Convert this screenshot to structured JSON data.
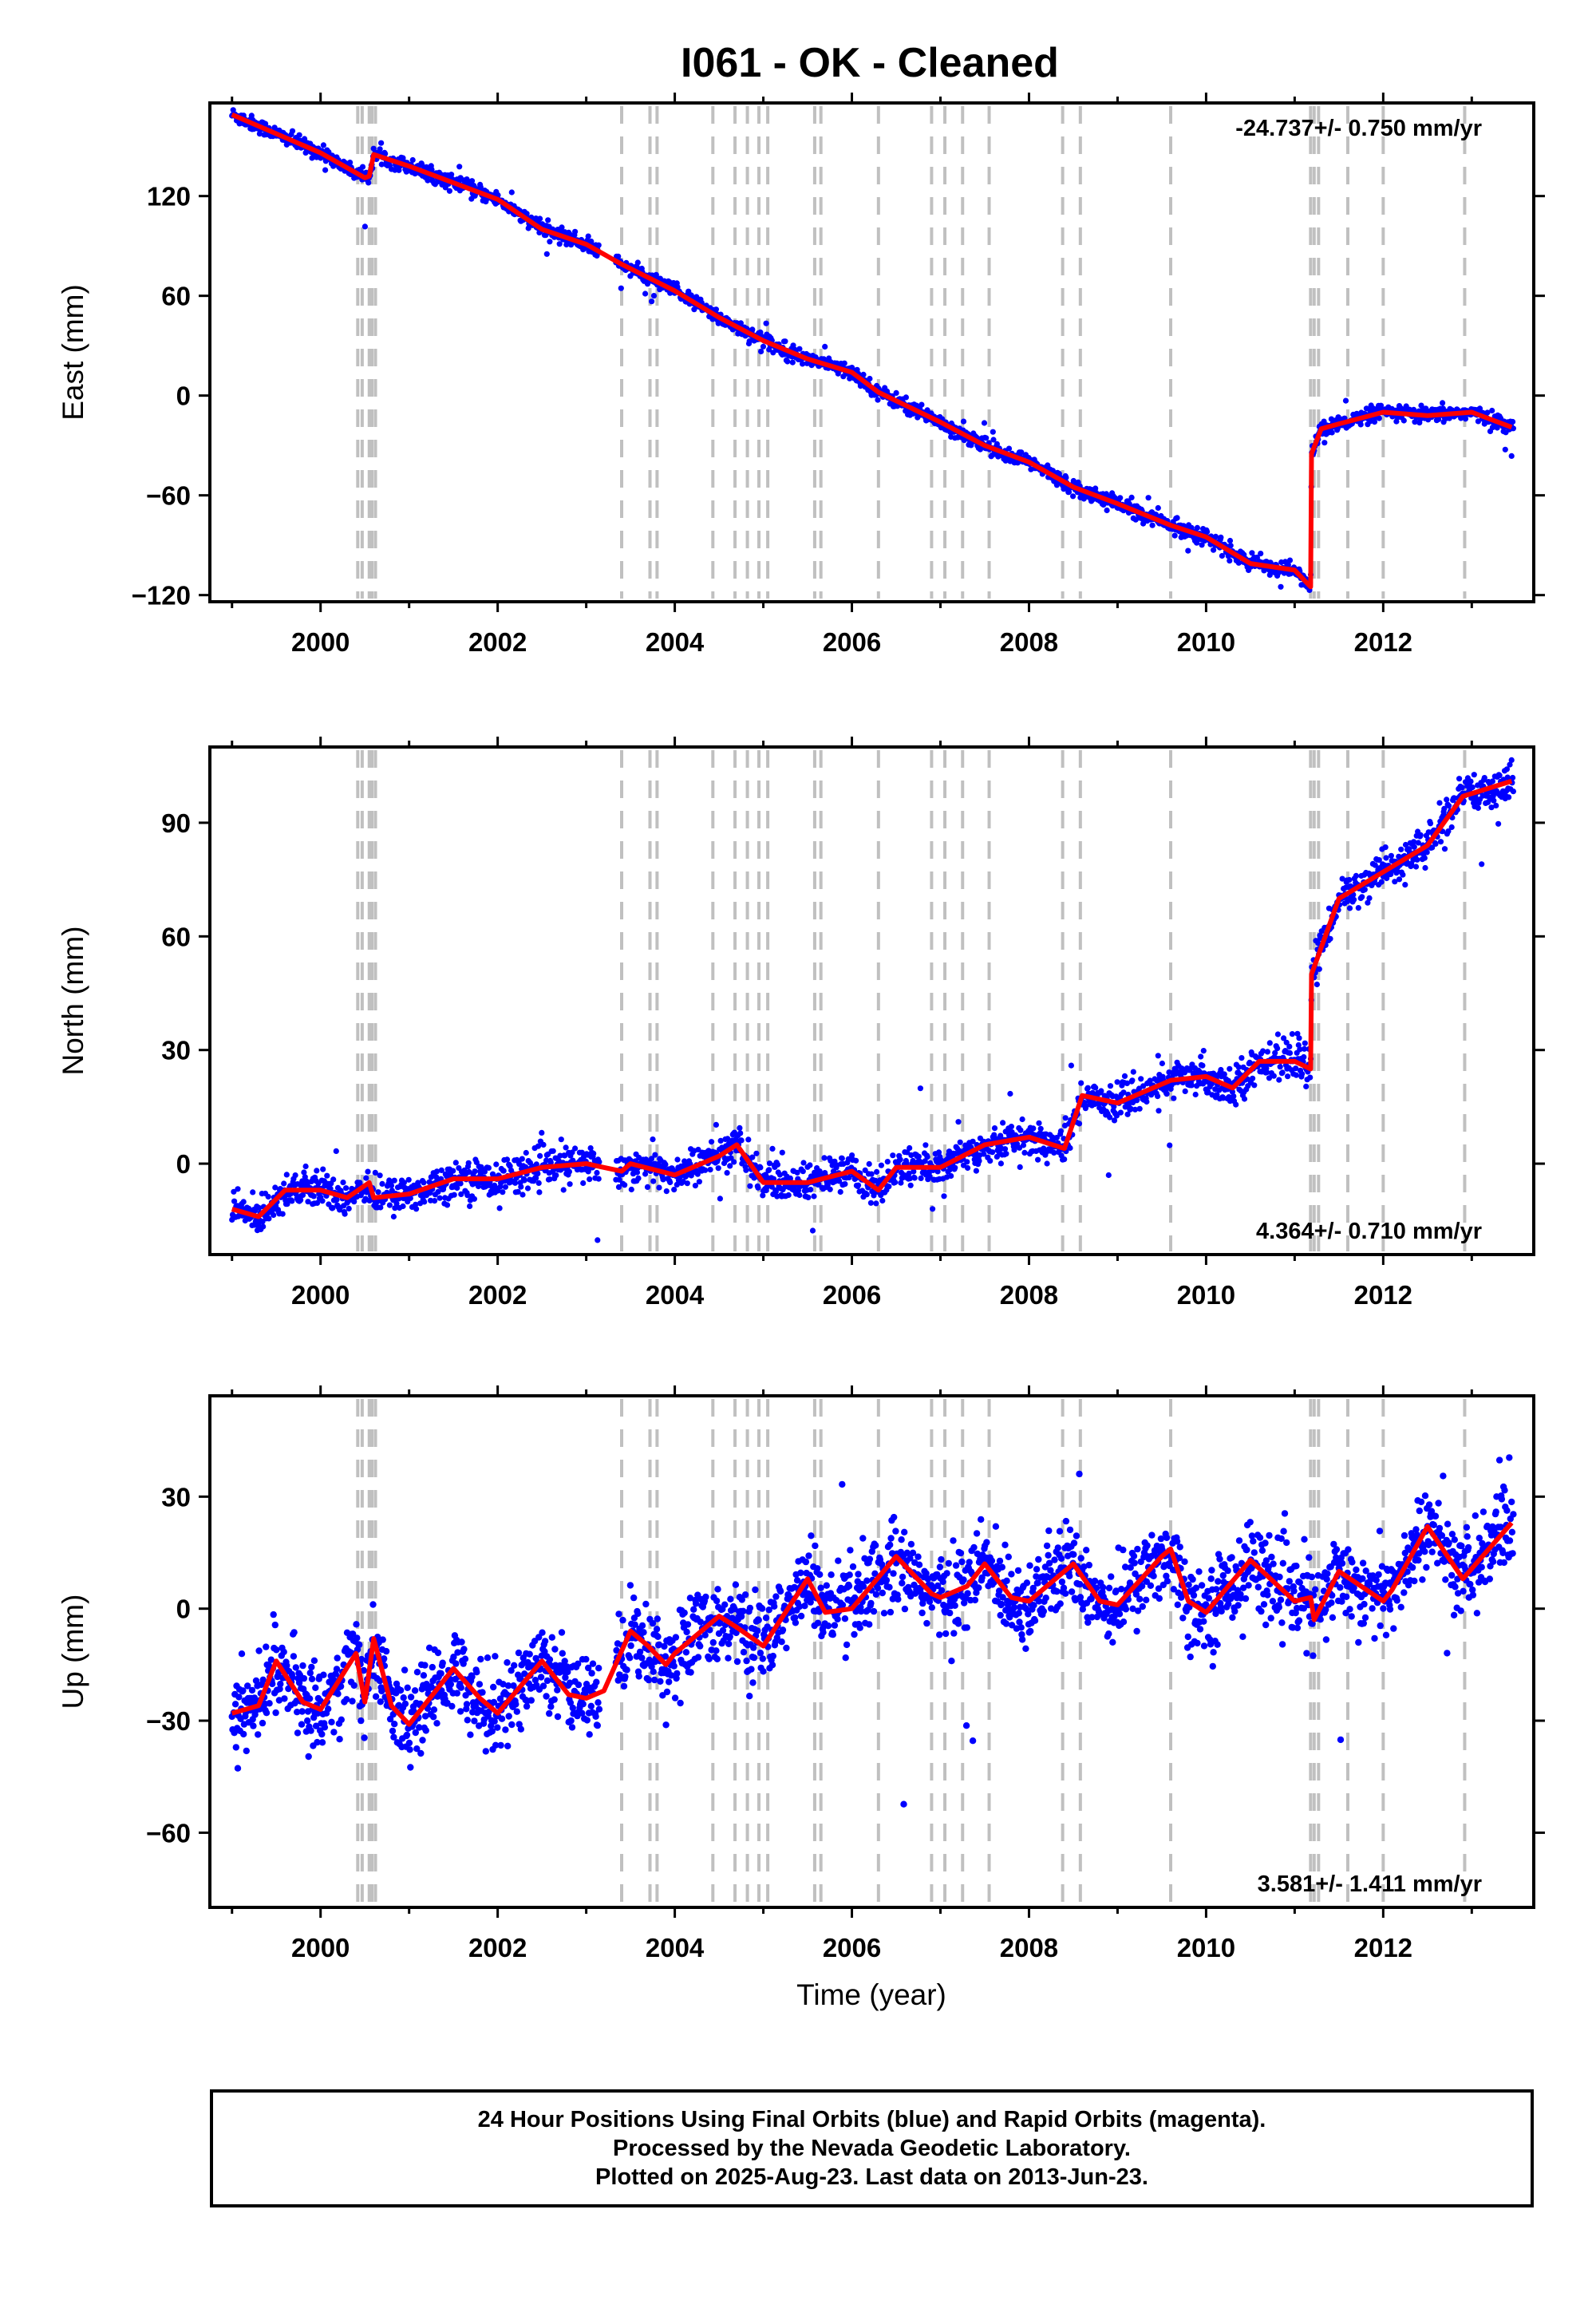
{
  "title": "I061  - OK - Cleaned",
  "colors": {
    "final_orbits": "#0000ff",
    "model": "#ff0000",
    "event_lines": "#c0c0c0",
    "frame": "#000000"
  },
  "x_axis": {
    "label": "Time (year)",
    "range": [
      1998.75,
      2013.7
    ],
    "ticks": [
      "2000",
      "2002",
      "2004",
      "2006",
      "2008",
      "2010",
      "2012"
    ]
  },
  "event_epochs": [
    2000.42,
    2000.47,
    2000.55,
    2000.58,
    2000.62,
    2003.4,
    2003.72,
    2003.8,
    2004.43,
    2004.68,
    2004.82,
    2004.95,
    2005.05,
    2005.58,
    2005.65,
    2006.3,
    2006.9,
    2007.05,
    2007.25,
    2007.55,
    2008.38,
    2008.58,
    2009.6,
    2011.18,
    2011.22,
    2011.27,
    2011.6,
    2012.0,
    2012.92
  ],
  "caption": {
    "line1": "24 Hour Positions Using Final Orbits (blue) and Rapid Orbits (magenta).",
    "line2": "Processed by the Nevada Geodetic Laboratory.",
    "line3": "Plotted on 2025-Aug-23. Last data on 2013-Jun-23."
  },
  "chart_data": [
    {
      "type": "scatter",
      "component": "east",
      "ylabel": "East (mm)",
      "ylim": [
        -124,
        176
      ],
      "yticks": [
        -120,
        -60,
        0,
        60,
        120
      ],
      "rate_label": "-24.737+/- 0.750 mm/yr",
      "rate_position": "top-right",
      "model": {
        "x": [
          1999.0,
          2000.0,
          2000.5,
          2000.55,
          2000.6,
          2001.0,
          2002.0,
          2002.5,
          2003.0,
          2003.4,
          2004.0,
          2004.5,
          2005.0,
          2005.5,
          2006.0,
          2006.3,
          2007.0,
          2007.5,
          2008.0,
          2008.5,
          2009.0,
          2009.6,
          2010.0,
          2010.5,
          2011.0,
          2011.18,
          2011.19,
          2011.3,
          2011.5,
          2012.0,
          2012.5,
          2013.0,
          2013.45
        ],
        "y": [
          169,
          146,
          131,
          132,
          145,
          138,
          118,
          100,
          91,
          79,
          63,
          47,
          33,
          22,
          14,
          2,
          -16,
          -30,
          -40,
          -55,
          -65,
          -78,
          -85,
          -101,
          -105,
          -115,
          -35,
          -20,
          -17,
          -10,
          -12,
          -10,
          -19
        ]
      }
    },
    {
      "type": "scatter",
      "component": "north",
      "ylabel": "North (mm)",
      "ylim": [
        -24,
        110
      ],
      "yticks": [
        0,
        30,
        60,
        90
      ],
      "rate_label": "4.364+/- 0.710 mm/yr",
      "rate_position": "bottom-right",
      "model": {
        "x": [
          1999.0,
          1999.3,
          1999.6,
          2000.0,
          2000.3,
          2000.55,
          2000.6,
          2001.0,
          2001.5,
          2002.0,
          2002.5,
          2003.0,
          2003.4,
          2003.5,
          2004.0,
          2004.5,
          2004.7,
          2005.0,
          2005.5,
          2006.0,
          2006.3,
          2006.5,
          2007.0,
          2007.5,
          2008.0,
          2008.4,
          2008.6,
          2009.0,
          2009.6,
          2010.0,
          2010.3,
          2010.6,
          2011.0,
          2011.18,
          2011.19,
          2011.5,
          2012.0,
          2012.5,
          2012.9,
          2013.45
        ],
        "y": [
          -12,
          -14,
          -7,
          -7,
          -9,
          -5,
          -9,
          -8,
          -4,
          -4,
          -1,
          0,
          -2,
          0,
          -3,
          2,
          5,
          -5,
          -5,
          -2,
          -7,
          -1,
          -1,
          5,
          7,
          4,
          18,
          16,
          22,
          23,
          20,
          27,
          27,
          25,
          50,
          70,
          77,
          84,
          97,
          101
        ]
      }
    },
    {
      "type": "scatter",
      "component": "up",
      "ylabel": "Up (mm)",
      "ylim": [
        -80,
        57
      ],
      "yticks": [
        -60,
        -30,
        0,
        30
      ],
      "rate_label": "3.581+/- 1.411 mm/yr",
      "rate_position": "bottom-right",
      "model": {
        "x": [
          1999.0,
          1999.3,
          1999.5,
          1999.8,
          2000.0,
          2000.4,
          2000.5,
          2000.6,
          2000.8,
          2001.0,
          2001.5,
          2001.8,
          2002.0,
          2002.5,
          2002.8,
          2003.0,
          2003.2,
          2003.5,
          2003.7,
          2003.9,
          2004.0,
          2004.5,
          2004.7,
          2005.0,
          2005.5,
          2005.7,
          2006.0,
          2006.5,
          2006.9,
          2007.0,
          2007.3,
          2007.5,
          2007.8,
          2008.0,
          2008.5,
          2008.8,
          2009.0,
          2009.5,
          2009.6,
          2009.8,
          2010.0,
          2010.5,
          2011.0,
          2011.18,
          2011.22,
          2011.5,
          2012.0,
          2012.1,
          2012.5,
          2012.9,
          2013.45
        ],
        "y": [
          -28,
          -26,
          -14,
          -25,
          -27,
          -12,
          -25,
          -8,
          -26,
          -31,
          -16,
          -24,
          -28,
          -14,
          -23,
          -24,
          -22,
          -6,
          -10,
          -15,
          -12,
          -2,
          -5,
          -10,
          8,
          -1,
          0,
          14,
          4,
          3,
          6,
          12,
          3,
          2,
          12,
          2,
          1,
          14,
          16,
          2,
          -1,
          13,
          2,
          3,
          -3,
          10,
          2,
          5,
          22,
          8,
          23
        ]
      }
    }
  ]
}
